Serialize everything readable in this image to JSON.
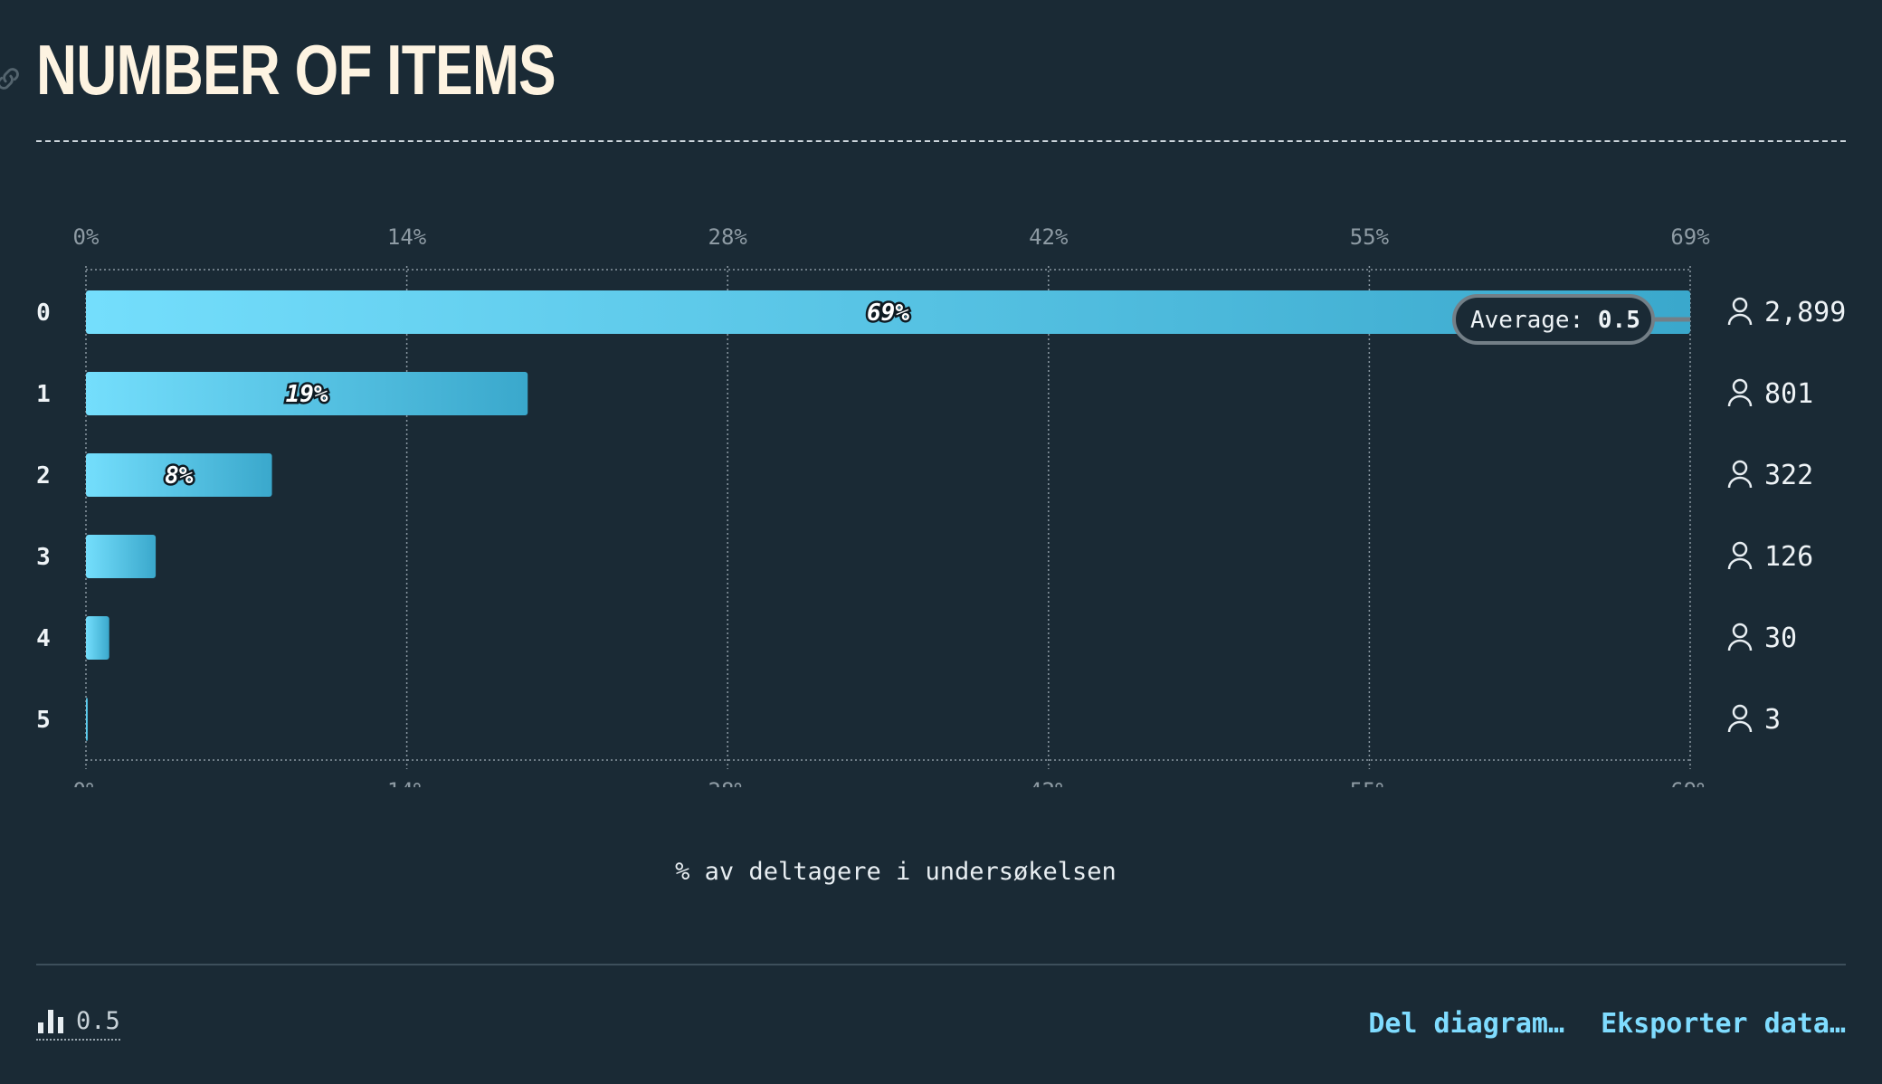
{
  "header": {
    "title": "NUMBER OF ITEMS"
  },
  "chart_data": {
    "type": "bar",
    "orientation": "horizontal",
    "categories": [
      "0",
      "1",
      "2",
      "3",
      "4",
      "5"
    ],
    "values": [
      69,
      19,
      8,
      3,
      1,
      0
    ],
    "data_labels": [
      "69%",
      "19%",
      "8%",
      "",
      "",
      ""
    ],
    "counts": [
      "2,899",
      "801",
      "322",
      "126",
      "30",
      "3"
    ],
    "xlim": [
      0,
      69
    ],
    "x_ticks": [
      "0%",
      "14%",
      "28%",
      "42%",
      "55%",
      "69%"
    ],
    "xlabel": "% av deltagere i undersøkelsen",
    "average": {
      "label": "Average:",
      "value": "0.5"
    },
    "grid": true,
    "colors": {
      "bar_start": "#74defc",
      "bar_end": "#3aa8cc",
      "background": "#1a2a35",
      "grid": "#8a98a2"
    }
  },
  "footer": {
    "version_icon": "bar-chart-icon",
    "version_value": "0.5",
    "share_label": "Del diagram…",
    "export_label": "Eksporter data…"
  }
}
